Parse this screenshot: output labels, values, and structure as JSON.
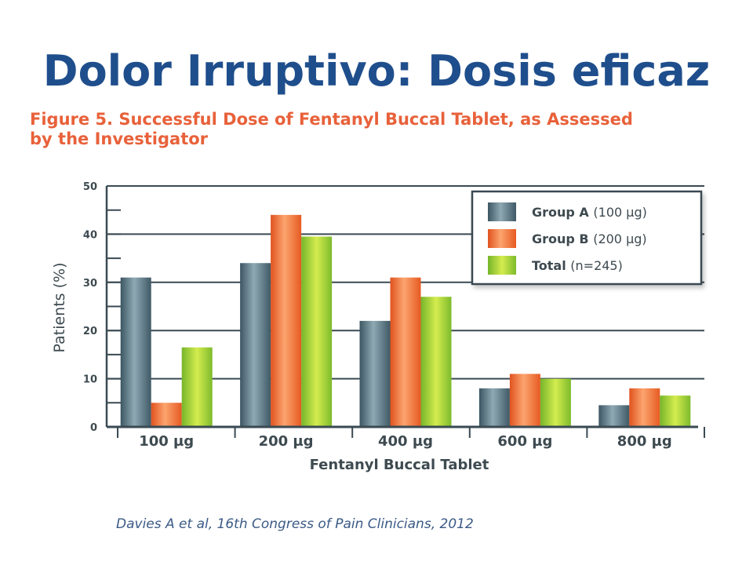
{
  "slide": {
    "title": "Dolor Irruptivo: Dosis eficaz",
    "citation": "Davies A et al,  16th Congress of Pain Clinicians, 2012"
  },
  "chart_data": {
    "type": "bar",
    "title": "Figure 5. Successful Dose of Fentanyl Buccal Tablet, as Assessed by the Investigator",
    "title_lines": [
      "Figure 5. Successful Dose of Fentanyl Buccal Tablet, as Assessed",
      "by the Investigator"
    ],
    "xlabel": "Fentanyl Buccal Tablet",
    "ylabel": "Patients (%)",
    "ylim": [
      0,
      50
    ],
    "yticks": [
      "0",
      "10",
      "20",
      "30",
      "40",
      "50"
    ],
    "grid": true,
    "legend_position": "top-right",
    "categories": [
      "100 µg",
      "200 µg",
      "400 µg",
      "600 µg",
      "800 µg"
    ],
    "series": [
      {
        "name": "Group A",
        "name_suffix": "(100 µg)",
        "color": "#4d6b78",
        "values": [
          31,
          34,
          22,
          8,
          4.5
        ]
      },
      {
        "name": "Group B",
        "name_suffix": "(200 µg)",
        "color": "#f26a2e",
        "values": [
          5,
          44,
          31,
          11,
          8
        ]
      },
      {
        "name": "Total",
        "name_suffix": "(n=245)",
        "color": "#8fcb3a",
        "values": [
          16.5,
          39.5,
          27,
          10,
          6.5
        ]
      }
    ]
  }
}
